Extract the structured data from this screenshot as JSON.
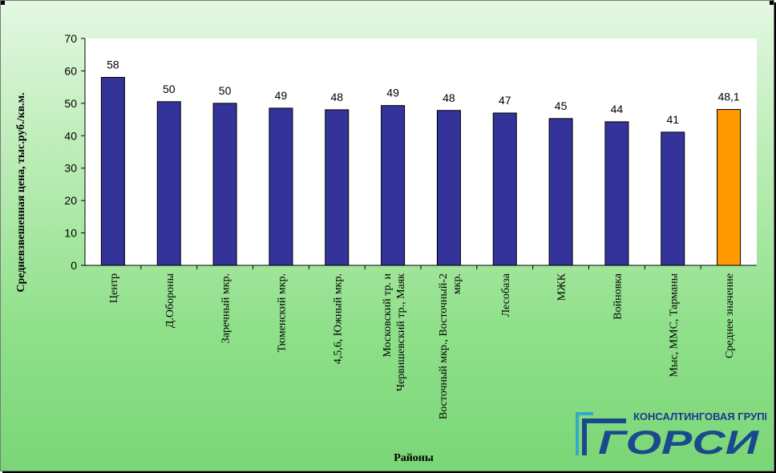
{
  "chart_data": {
    "type": "bar",
    "categories": [
      "Центр",
      "Д.Обороны",
      "Заречный мкр.",
      "Тюменский мкр.",
      "4,5,6, Южный мкр.",
      "Московский тр. и Червишевский тр., Маяк",
      "Восточный мкр., Восточный-2 мкр.",
      "Лесобаза",
      "МЖК",
      "Войновка",
      "Мыс, ММС, Тарманы",
      "Среднее значение"
    ],
    "values": [
      58,
      50.5,
      50,
      48.5,
      48,
      49.3,
      47.8,
      47,
      45.3,
      44.3,
      41.1,
      48.1
    ],
    "data_labels": [
      "58",
      "50",
      "50",
      "49",
      "48",
      "49",
      "48",
      "47",
      "45",
      "44",
      "41",
      "48,1"
    ],
    "ylabel": "Средневзвешенная цена, тыс.руб./кв.м.",
    "xlabel": "Районы",
    "ylim": [
      0,
      70
    ],
    "yticks": [
      0,
      10,
      20,
      30,
      40,
      50,
      60,
      70
    ],
    "grid": false,
    "colors": {
      "bar": "#333399",
      "highlight": "#ff9900",
      "plot_bg": "#ffffff"
    },
    "highlight_index": 11
  },
  "logo": {
    "company_line": "КОНСАЛТИНГОВАЯ ГРУППА",
    "name": "ГОРСИ"
  }
}
